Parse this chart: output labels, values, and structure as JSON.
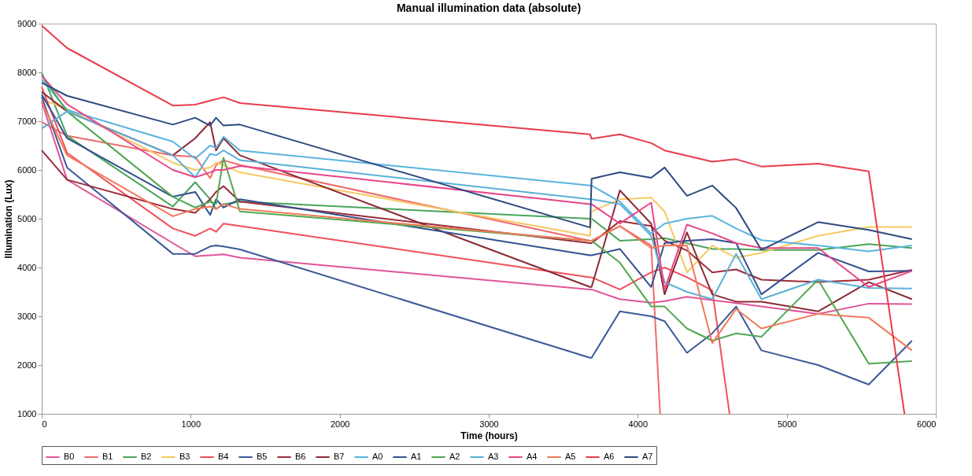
{
  "chart_data": {
    "type": "line",
    "title": "Manual illumination data (absolute)",
    "xlabel": "Time (hours)",
    "ylabel": "Illumination (Lux)",
    "legend": "bottom",
    "xlim": [
      0,
      6000
    ],
    "xticks": [
      0,
      1000,
      2000,
      3000,
      4000,
      5000,
      6000
    ],
    "ylim": [
      1000,
      9000
    ],
    "yticks": [
      1000,
      2000,
      3000,
      4000,
      5000,
      6000,
      7000,
      8000,
      9000
    ],
    "x": [
      0,
      170,
      880,
      1030,
      1130,
      1170,
      1220,
      1330,
      3680,
      3690,
      3880,
      4090,
      4180,
      4330,
      4500,
      4660,
      4830,
      5210,
      5550,
      5840
    ],
    "series": [
      {
        "name": "B0",
        "color": "#e0559a",
        "values": [
          7400,
          5800,
          4500,
          4230,
          4250,
          4260,
          4270,
          4200,
          3550,
          3550,
          3350,
          3280,
          3310,
          3400,
          3330,
          3270,
          3200,
          3050,
          3260,
          3250
        ]
      },
      {
        "name": "B1",
        "color": "#f06a6a",
        "x": [
          0,
          170,
          880,
          1030,
          1130,
          1170,
          1220,
          1330,
          3680,
          3690,
          3880,
          4090,
          4150
        ],
        "values": [
          6980,
          6700,
          6300,
          6270,
          5830,
          6100,
          6200,
          6100,
          4550,
          4550,
          4850,
          4450,
          1000
        ]
      },
      {
        "name": "B2",
        "color": "#4aa55a",
        "values": [
          8000,
          6700,
          5250,
          5750,
          5400,
          5200,
          5300,
          5350,
          5000,
          5000,
          4550,
          4580,
          4600,
          4500,
          4380,
          4380,
          4360,
          4360,
          4480,
          4400
        ]
      },
      {
        "name": "B3",
        "color": "#f7c861",
        "values": [
          7450,
          7250,
          6150,
          6000,
          6050,
          6150,
          6100,
          5950,
          4650,
          5150,
          5400,
          5430,
          5150,
          3900,
          4450,
          4200,
          4300,
          4650,
          4830,
          4830
        ]
      },
      {
        "name": "B4",
        "color": "#f0505a",
        "x": [
          0,
          170,
          880,
          1030,
          1130,
          1170,
          1220,
          1330,
          3680,
          3690,
          3880,
          4090,
          4180,
          4330,
          4500,
          4616
        ],
        "values": [
          7700,
          6350,
          4800,
          4650,
          4800,
          4730,
          4900,
          4850,
          3800,
          3800,
          3550,
          3900,
          4000,
          3800,
          3530,
          1000
        ]
      },
      {
        "name": "B5",
        "color": "#3b5998",
        "values": [
          7500,
          6050,
          4280,
          4280,
          4430,
          4450,
          4430,
          4370,
          2150,
          2150,
          3100,
          3000,
          2900,
          2250,
          2650,
          3200,
          2300,
          2000,
          1600,
          2500
        ]
      },
      {
        "name": "B6",
        "color": "#9b2c3c",
        "values": [
          6400,
          5800,
          5200,
          5120,
          5400,
          5550,
          5670,
          5350,
          4500,
          4500,
          4950,
          4850,
          4550,
          4350,
          3900,
          3960,
          3750,
          3700,
          3750,
          3950
        ]
      },
      {
        "name": "B7",
        "color": "#8b2a35",
        "values": [
          7600,
          7200,
          6300,
          6650,
          6980,
          6400,
          6650,
          6300,
          3600,
          3600,
          5580,
          4900,
          3450,
          4720,
          3450,
          3300,
          3300,
          3100,
          3700,
          3350
        ]
      },
      {
        "name": "A0",
        "color": "#59b4e0",
        "values": [
          7860,
          7230,
          6580,
          6230,
          6500,
          6450,
          6680,
          6400,
          5680,
          5680,
          5350,
          4700,
          4900,
          5000,
          5060,
          4800,
          4560,
          4450,
          4330,
          4450
        ]
      },
      {
        "name": "A1",
        "color": "#33508f",
        "values": [
          7550,
          6650,
          5450,
          5550,
          5080,
          5400,
          5230,
          5400,
          4250,
          4250,
          4380,
          3600,
          4500,
          4550,
          4580,
          4500,
          3450,
          4300,
          3920,
          3930
        ]
      },
      {
        "name": "A2",
        "color": "#52a852",
        "values": [
          7950,
          7200,
          5450,
          5230,
          5350,
          5300,
          6250,
          5150,
          4550,
          4550,
          4100,
          3200,
          3200,
          2750,
          2500,
          2650,
          2580,
          3750,
          2030,
          2080
        ]
      },
      {
        "name": "A3",
        "color": "#5ab0d8",
        "values": [
          6850,
          7200,
          6300,
          5850,
          6330,
          6300,
          6400,
          6200,
          5400,
          5400,
          5300,
          4650,
          3700,
          3500,
          3350,
          4280,
          3350,
          3750,
          3580,
          3570
        ]
      },
      {
        "name": "A4",
        "color": "#e8468a",
        "values": [
          7930,
          7350,
          6000,
          5850,
          5950,
          6000,
          6000,
          6080,
          5300,
          5300,
          4900,
          5330,
          3550,
          4880,
          4700,
          4500,
          4400,
          4400,
          3600,
          3930
        ]
      },
      {
        "name": "A5",
        "color": "#f07a5a",
        "values": [
          7400,
          6300,
          5050,
          5200,
          5250,
          5200,
          5300,
          5200,
          4550,
          4550,
          4850,
          4400,
          4450,
          4450,
          2450,
          3150,
          2750,
          3050,
          2970,
          2300
        ]
      },
      {
        "name": "A6",
        "color": "#e83c4c",
        "x": [
          0,
          170,
          880,
          1030,
          1130,
          1220,
          1330,
          3680,
          3690,
          3880,
          4090,
          4180,
          4500,
          4660,
          4830,
          5210,
          5550,
          5790
        ],
        "values": [
          8960,
          8500,
          7320,
          7340,
          7420,
          7490,
          7370,
          6730,
          6640,
          6730,
          6550,
          6400,
          6170,
          6220,
          6070,
          6130,
          5970,
          1000
        ]
      },
      {
        "name": "A7",
        "color": "#2e4a80",
        "values": [
          7790,
          7520,
          6930,
          7070,
          6910,
          7070,
          6910,
          6930,
          4820,
          5820,
          5950,
          5840,
          6050,
          5470,
          5680,
          5220,
          4360,
          4930,
          4770,
          4580
        ]
      }
    ]
  }
}
